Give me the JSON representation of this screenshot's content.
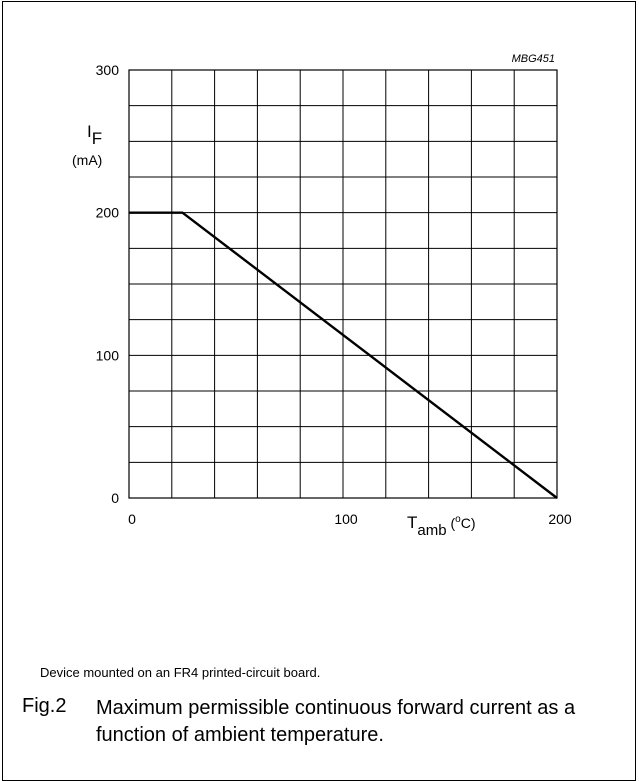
{
  "chart_data": {
    "type": "line",
    "code": "MBG451",
    "ylabel": {
      "main": "I",
      "sub": "F",
      "unit": "(mA)"
    },
    "xlabel": {
      "main": "T",
      "sub": "amb",
      "unit_open": " (",
      "unit_sup": "o",
      "unit_close": "C)"
    },
    "xlim": [
      0,
      200
    ],
    "ylim": [
      0,
      300
    ],
    "xticks": [
      0,
      100,
      200
    ],
    "yticks": [
      0,
      100,
      200,
      300
    ],
    "grid": true,
    "grid_x_step": 20,
    "grid_y_step": 25,
    "series": [
      {
        "x": [
          0,
          25,
          200
        ],
        "y": [
          200,
          200,
          0
        ]
      }
    ]
  },
  "note": "Device mounted on an FR4 printed-circuit board.",
  "caption": {
    "number": "Fig.2",
    "text": "Maximum permissible continuous forward current as a function of ambient temperature."
  }
}
